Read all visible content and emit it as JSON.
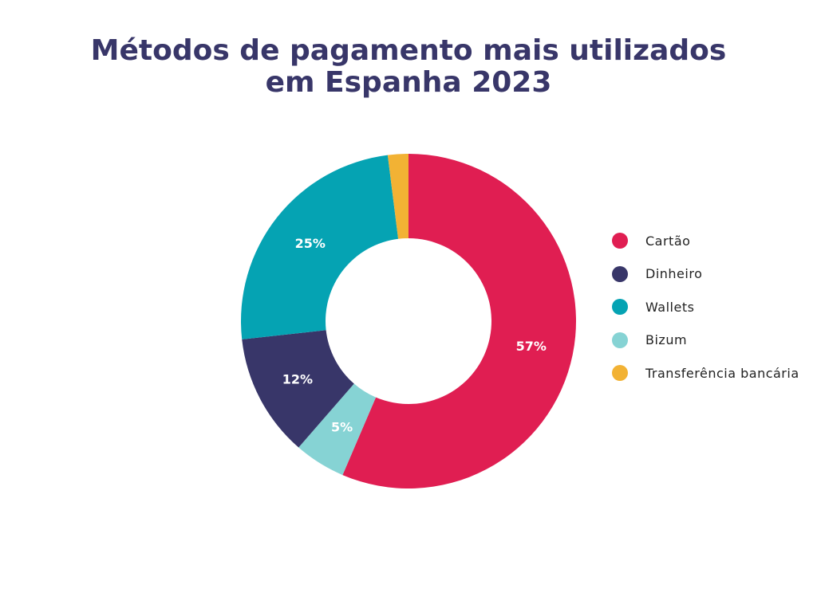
{
  "chart_data": {
    "type": "pie",
    "variant": "donut",
    "title_lines": [
      "Métodos de pagamento mais utilizados",
      "em Espanha 2023"
    ],
    "categories": [
      "Cartão",
      "Dinheiro",
      "Wallets",
      "Bizum",
      "Transferência bancária"
    ],
    "values": [
      57,
      12,
      25,
      5,
      2
    ],
    "data_labels": [
      "57%",
      "12%",
      "25%",
      "5%",
      ""
    ],
    "slice_order_clockwise_from_top": [
      "Cartão",
      "Bizum",
      "Dinheiro",
      "Wallets",
      "Transferência bancária"
    ],
    "colors": {
      "Cartão": "#E01E52",
      "Dinheiro": "#383669",
      "Wallets": "#05A3B3",
      "Bizum": "#86D3D4",
      "Transferência bancária": "#F2B234"
    },
    "legend_position": "right"
  }
}
